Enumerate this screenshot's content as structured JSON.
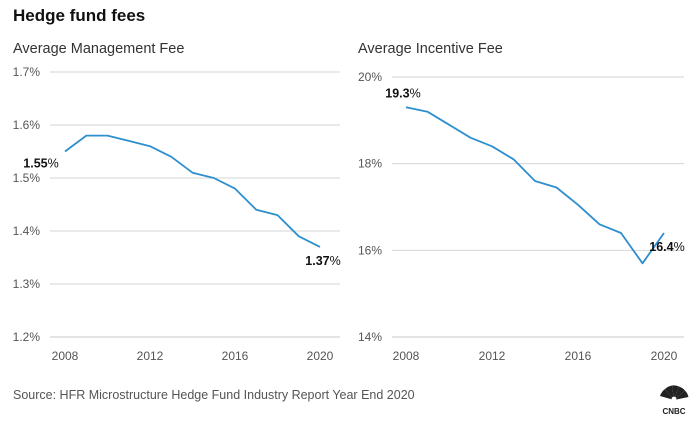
{
  "title": "Hedge fund fees",
  "source": "Source: HFR Microstructure Hedge Fund Industry Report Year End 2020",
  "logo": {
    "icon": "cnbc-peacock-icon",
    "text": "CNBC"
  },
  "chart_data": [
    {
      "type": "line",
      "title": "Average Management Fee",
      "xlabel": "",
      "ylabel": "",
      "xlim": [
        2008,
        2020
      ],
      "ylim": [
        1.2,
        1.7
      ],
      "x_ticks": [
        2008,
        2012,
        2016,
        2020
      ],
      "y_ticks": [
        1.2,
        1.3,
        1.4,
        1.5,
        1.6,
        1.7
      ],
      "y_tick_labels": [
        "1.2%",
        "1.3%",
        "1.4%",
        "1.5%",
        "1.6%",
        "1.7%"
      ],
      "grid": true,
      "color": "#2e8fcf",
      "series": [
        {
          "x": [
            2008,
            2009,
            2010,
            2011,
            2012,
            2013,
            2014,
            2015,
            2016,
            2017,
            2018,
            2019,
            2020
          ],
          "values": [
            1.55,
            1.58,
            1.58,
            1.57,
            1.56,
            1.54,
            1.51,
            1.5,
            1.48,
            1.44,
            1.43,
            1.39,
            1.37
          ]
        }
      ],
      "annotations": [
        {
          "x": 2008,
          "y": 1.55,
          "text": "1.55%",
          "position": "below-left"
        },
        {
          "x": 2020,
          "y": 1.37,
          "text": "1.37%",
          "position": "below"
        }
      ]
    },
    {
      "type": "line",
      "title": "Average Incentive Fee",
      "xlabel": "",
      "ylabel": "",
      "xlim": [
        2008,
        2020
      ],
      "ylim": [
        14,
        20
      ],
      "x_ticks": [
        2008,
        2012,
        2016,
        2020
      ],
      "y_ticks": [
        14,
        16,
        18,
        20
      ],
      "y_tick_labels": [
        "14%",
        "16%",
        "18%",
        "20%"
      ],
      "grid": true,
      "color": "#2e8fcf",
      "series": [
        {
          "x": [
            2008,
            2009,
            2010,
            2011,
            2012,
            2013,
            2014,
            2015,
            2016,
            2017,
            2018,
            2019,
            2020
          ],
          "values": [
            19.3,
            19.2,
            18.9,
            18.6,
            18.4,
            18.1,
            17.6,
            17.45,
            17.05,
            16.6,
            16.4,
            15.7,
            16.4
          ]
        }
      ],
      "annotations": [
        {
          "x": 2008,
          "y": 19.3,
          "text": "19.3%",
          "position": "above"
        },
        {
          "x": 2020,
          "y": 16.4,
          "text": "16.4%",
          "position": "below"
        }
      ]
    }
  ]
}
